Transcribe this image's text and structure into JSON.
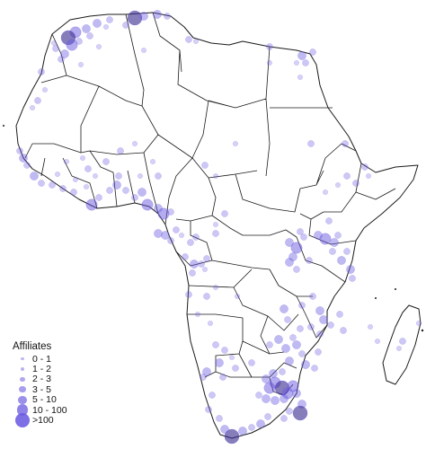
{
  "legend": {
    "title": "Affiliates",
    "bins": [
      {
        "label": "0 - 1"
      },
      {
        "label": "1 - 2"
      },
      {
        "label": "2 - 3"
      },
      {
        "label": "3 - 5"
      },
      {
        "label": "5 - 10"
      },
      {
        "label": "10 - 100"
      },
      {
        "label": ">100"
      }
    ]
  },
  "colors": {
    "marker": "#6a5ae0",
    "marker_dark": "#3c2f8f",
    "land": "#ffffff",
    "border": "#1a1a1a"
  }
}
